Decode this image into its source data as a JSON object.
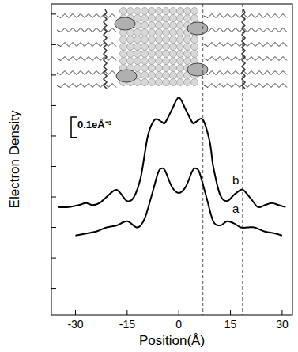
{
  "chart_data": {
    "type": "line",
    "x_label": "Position(Å)",
    "y_label": "Electron Density",
    "xlim": [
      -37,
      33
    ],
    "xticks": [
      -30,
      -15,
      0,
      15,
      30
    ],
    "ylim": [
      -0.13,
      1.4
    ],
    "yticks": [
      0,
      0.15,
      0.3,
      0.45,
      0.6,
      0.75,
      0.9,
      1.05,
      1.2,
      1.35
    ],
    "tick_labels": "x",
    "scale_bar": {
      "value": 0.1,
      "label": "0.1eÅ⁻³"
    },
    "vlines": [
      7,
      18.5
    ],
    "series": [
      {
        "name": "a",
        "color": "#000000",
        "x": [
          -30,
          -27,
          -24,
          -21,
          -18,
          -15,
          -12,
          -10,
          -8,
          -6,
          -5,
          -4,
          -2,
          0,
          2,
          4,
          5,
          6,
          8,
          10,
          12,
          14,
          16,
          18,
          20,
          22,
          25,
          28,
          30
        ],
        "values": [
          0.26,
          0.27,
          0.28,
          0.3,
          0.31,
          0.33,
          0.3,
          0.34,
          0.45,
          0.57,
          0.59,
          0.58,
          0.5,
          0.47,
          0.5,
          0.58,
          0.59,
          0.57,
          0.45,
          0.33,
          0.31,
          0.33,
          0.32,
          0.3,
          0.3,
          0.3,
          0.28,
          0.27,
          0.26
        ]
      },
      {
        "name": "b",
        "color": "#000000",
        "x": [
          -35,
          -32,
          -29,
          -27,
          -25,
          -23,
          -21,
          -19,
          -18,
          -17,
          -15,
          -13,
          -11,
          -9,
          -7,
          -5,
          -4,
          -2,
          0,
          2,
          4,
          5,
          7,
          9,
          10,
          12,
          14,
          16,
          18,
          19,
          21,
          23,
          25,
          27,
          29,
          31
        ],
        "values": [
          0.4,
          0.4,
          0.41,
          0.42,
          0.41,
          0.42,
          0.45,
          0.48,
          0.485,
          0.47,
          0.43,
          0.45,
          0.55,
          0.75,
          0.83,
          0.82,
          0.815,
          0.88,
          0.94,
          0.88,
          0.815,
          0.82,
          0.83,
          0.72,
          0.6,
          0.46,
          0.43,
          0.46,
          0.485,
          0.48,
          0.44,
          0.4,
          0.41,
          0.42,
          0.41,
          0.4
        ]
      }
    ]
  }
}
